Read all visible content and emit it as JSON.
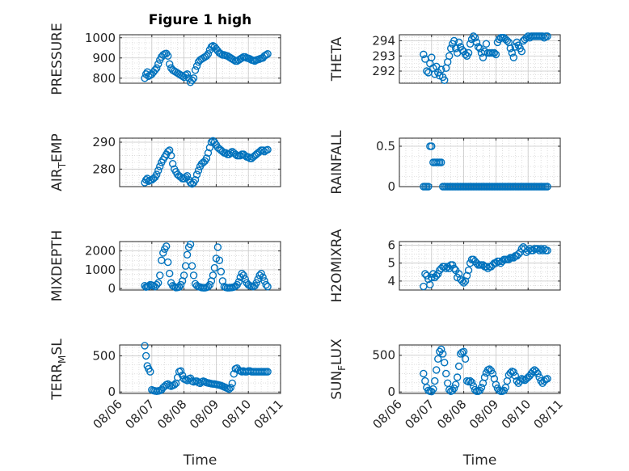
{
  "figure": {
    "title": "Figure 1 high"
  },
  "colors": {
    "marker": "#0072bd",
    "axis": "#262626",
    "grid": "#c8c8c8"
  },
  "chart_data": [
    {
      "type": "scatter",
      "ylabel": "PRESSURE",
      "xlabel": "",
      "ylim": [
        775,
        1015
      ],
      "yticks": [
        800,
        900,
        1000
      ],
      "xlim": [
        0,
        5
      ],
      "xticks": [],
      "x": [
        0.78,
        0.82,
        0.86,
        0.9,
        0.95,
        1.0,
        1.05,
        1.1,
        1.15,
        1.2,
        1.25,
        1.3,
        1.35,
        1.4,
        1.45,
        1.5,
        1.55,
        1.6,
        1.65,
        1.7,
        1.75,
        1.8,
        1.85,
        1.9,
        1.95,
        2.0,
        2.05,
        2.1,
        2.15,
        2.2,
        2.25,
        2.3,
        2.35,
        2.4,
        2.45,
        2.5,
        2.55,
        2.6,
        2.65,
        2.7,
        2.75,
        2.8,
        2.85,
        2.9,
        2.95,
        3.0,
        3.05,
        3.1,
        3.15,
        3.2,
        3.25,
        3.3,
        3.35,
        3.4,
        3.45,
        3.5,
        3.55,
        3.6,
        3.65,
        3.7,
        3.75,
        3.8,
        3.85,
        3.9,
        3.95,
        4.0,
        4.05,
        4.1,
        4.15,
        4.2,
        4.25,
        4.3,
        4.35,
        4.4,
        4.45,
        4.5,
        4.55,
        4.6
      ],
      "y": [
        800,
        820,
        830,
        810,
        815,
        820,
        830,
        840,
        850,
        870,
        890,
        905,
        915,
        920,
        922,
        910,
        870,
        850,
        840,
        835,
        830,
        825,
        820,
        815,
        810,
        805,
        815,
        820,
        800,
        780,
        790,
        800,
        840,
        860,
        880,
        890,
        895,
        900,
        905,
        910,
        920,
        940,
        955,
        960,
        955,
        945,
        935,
        925,
        920,
        915,
        915,
        912,
        910,
        905,
        900,
        895,
        890,
        885,
        885,
        890,
        895,
        900,
        905,
        905,
        900,
        898,
        895,
        890,
        888,
        885,
        890,
        892,
        895,
        898,
        900,
        910,
        915,
        920
      ]
    },
    {
      "type": "scatter",
      "ylabel": "THETA",
      "xlabel": "",
      "ylim": [
        291.2,
        294.4
      ],
      "yticks": [
        292,
        293,
        294
      ],
      "xlim": [
        0,
        5
      ],
      "xticks": [],
      "x": [
        0.75,
        0.8,
        0.85,
        0.9,
        0.95,
        1.0,
        1.05,
        1.1,
        1.15,
        1.2,
        1.25,
        1.3,
        1.35,
        1.4,
        1.45,
        1.5,
        1.55,
        1.6,
        1.65,
        1.7,
        1.75,
        1.8,
        1.85,
        1.9,
        1.95,
        2.0,
        2.05,
        2.1,
        2.15,
        2.2,
        2.25,
        2.3,
        2.35,
        2.4,
        2.45,
        2.5,
        2.55,
        2.6,
        2.65,
        2.7,
        2.75,
        2.8,
        2.85,
        2.9,
        2.95,
        3.0,
        3.05,
        3.1,
        3.15,
        3.2,
        3.25,
        3.3,
        3.35,
        3.4,
        3.45,
        3.5,
        3.55,
        3.6,
        3.65,
        3.7,
        3.75,
        3.8,
        3.85,
        3.9,
        3.95,
        4.0,
        4.05,
        4.1,
        4.15,
        4.2,
        4.25,
        4.3,
        4.35,
        4.4,
        4.45,
        4.5,
        4.55,
        4.6
      ],
      "y": [
        293.1,
        292.8,
        292.0,
        291.9,
        292.5,
        292.9,
        292.2,
        291.8,
        292.3,
        291.9,
        291.7,
        292.1,
        291.6,
        291.4,
        292.2,
        292.6,
        293.0,
        293.5,
        293.8,
        294.0,
        293.5,
        293.2,
        293.9,
        293.6,
        293.4,
        293.3,
        293.1,
        293.0,
        293.2,
        293.8,
        294.1,
        294.3,
        294.2,
        293.9,
        293.6,
        293.5,
        293.2,
        292.9,
        293.3,
        293.8,
        293.2,
        293.2,
        293.2,
        293.2,
        293.2,
        293.1,
        293.9,
        294.1,
        294.2,
        294.2,
        294.2,
        294.1,
        294.0,
        293.9,
        293.5,
        293.2,
        292.9,
        293.6,
        293.9,
        293.7,
        293.5,
        293.3,
        294.0,
        294.1,
        294.2,
        294.3,
        294.2,
        294.3,
        294.3,
        294.3,
        294.3,
        294.3,
        294.3,
        294.3,
        294.3,
        294.2,
        294.3,
        294.3
      ]
    },
    {
      "type": "scatter",
      "ylabel": "AIR_TEMP",
      "xlabel": "",
      "ylim": [
        273.5,
        291.5
      ],
      "yticks": [
        280,
        290
      ],
      "xlim": [
        0,
        5
      ],
      "xticks": [],
      "x": [
        0.78,
        0.82,
        0.86,
        0.9,
        0.95,
        1.0,
        1.05,
        1.1,
        1.15,
        1.2,
        1.25,
        1.3,
        1.35,
        1.4,
        1.45,
        1.5,
        1.55,
        1.6,
        1.65,
        1.7,
        1.75,
        1.8,
        1.85,
        1.9,
        1.95,
        2.0,
        2.05,
        2.1,
        2.15,
        2.2,
        2.25,
        2.3,
        2.35,
        2.4,
        2.45,
        2.5,
        2.55,
        2.6,
        2.65,
        2.7,
        2.75,
        2.8,
        2.85,
        2.9,
        2.95,
        3.0,
        3.05,
        3.1,
        3.15,
        3.2,
        3.25,
        3.3,
        3.35,
        3.4,
        3.45,
        3.5,
        3.55,
        3.6,
        3.65,
        3.7,
        3.75,
        3.8,
        3.85,
        3.9,
        3.95,
        4.0,
        4.05,
        4.1,
        4.15,
        4.2,
        4.25,
        4.3,
        4.35,
        4.4,
        4.45,
        4.5,
        4.55,
        4.6
      ],
      "y": [
        275,
        276,
        276.5,
        275.5,
        275.8,
        276,
        276.5,
        277,
        278,
        279.5,
        281,
        282.5,
        283.5,
        284.5,
        285.5,
        286.5,
        287,
        285,
        282,
        280,
        279,
        278,
        277.5,
        277,
        276.5,
        276.5,
        277,
        277.5,
        276,
        275,
        274.5,
        275,
        276,
        278,
        279.5,
        281,
        282,
        282.5,
        283,
        284,
        286,
        288,
        290,
        290.5,
        290,
        289,
        288,
        287.5,
        287,
        286.5,
        286,
        286,
        285.5,
        285.5,
        286,
        286.5,
        286,
        285.5,
        285,
        285,
        285,
        285.5,
        285.5,
        285,
        284.5,
        284.5,
        284,
        284,
        284.5,
        285,
        285.5,
        286,
        286.5,
        287,
        287,
        286.5,
        287,
        287.2
      ]
    },
    {
      "type": "scatter",
      "ylabel": "RAINFALL",
      "xlabel": "",
      "ylim": [
        0,
        0.6
      ],
      "yticks": [
        0,
        0.5
      ],
      "xlim": [
        0,
        5
      ],
      "xticks": [],
      "x": [
        0.75,
        0.8,
        0.85,
        0.9,
        0.95,
        1.0,
        1.05,
        1.1,
        1.15,
        1.2,
        1.25,
        1.3,
        1.35,
        1.4,
        1.45,
        1.5,
        1.55,
        1.6,
        1.65,
        1.7,
        1.75,
        1.8,
        1.85,
        1.9,
        1.95,
        2.0,
        2.05,
        2.1,
        2.15,
        2.2,
        2.25,
        2.3,
        2.35,
        2.4,
        2.45,
        2.5,
        2.55,
        2.6,
        2.65,
        2.7,
        2.75,
        2.8,
        2.85,
        2.9,
        2.95,
        3.0,
        3.05,
        3.1,
        3.15,
        3.2,
        3.25,
        3.3,
        3.35,
        3.4,
        3.45,
        3.5,
        3.55,
        3.6,
        3.65,
        3.7,
        3.75,
        3.8,
        3.85,
        3.9,
        3.95,
        4.0,
        4.05,
        4.1,
        4.15,
        4.2,
        4.25,
        4.3,
        4.35,
        4.4,
        4.45,
        4.5,
        4.55,
        4.6
      ],
      "y": [
        0,
        0,
        0,
        0,
        0.5,
        0.5,
        0.3,
        0.3,
        0.3,
        0.3,
        0.3,
        0.3,
        0,
        0,
        0,
        0,
        0,
        0,
        0,
        0,
        0,
        0,
        0,
        0,
        0,
        0,
        0,
        0,
        0,
        0,
        0,
        0,
        0,
        0,
        0,
        0,
        0,
        0,
        0,
        0,
        0,
        0,
        0,
        0,
        0,
        0,
        0,
        0,
        0,
        0,
        0,
        0,
        0,
        0,
        0,
        0,
        0,
        0,
        0,
        0,
        0,
        0,
        0,
        0,
        0,
        0,
        0,
        0,
        0,
        0,
        0,
        0,
        0,
        0,
        0,
        0,
        0,
        0
      ]
    },
    {
      "type": "scatter",
      "ylabel": "MIXDEPTH",
      "xlabel": "",
      "ylim": [
        -80,
        2500
      ],
      "yticks": [
        0,
        1000,
        2000
      ],
      "xlim": [
        0,
        5
      ],
      "xticks": [],
      "x": [
        0.78,
        0.82,
        0.86,
        0.9,
        0.95,
        1.0,
        1.05,
        1.1,
        1.15,
        1.2,
        1.25,
        1.3,
        1.35,
        1.4,
        1.45,
        1.5,
        1.55,
        1.6,
        1.65,
        1.7,
        1.75,
        1.8,
        1.85,
        1.9,
        1.95,
        2.0,
        2.05,
        2.1,
        2.15,
        2.2,
        2.25,
        2.3,
        2.35,
        2.4,
        2.45,
        2.5,
        2.55,
        2.6,
        2.65,
        2.7,
        2.75,
        2.8,
        2.85,
        2.9,
        2.95,
        3.0,
        3.05,
        3.1,
        3.15,
        3.2,
        3.25,
        3.3,
        3.35,
        3.4,
        3.45,
        3.5,
        3.55,
        3.6,
        3.65,
        3.7,
        3.75,
        3.8,
        3.85,
        3.9,
        3.95,
        4.0,
        4.05,
        4.1,
        4.15,
        4.2,
        4.25,
        4.3,
        4.35,
        4.4,
        4.45,
        4.5,
        4.55,
        4.6
      ],
      "y": [
        150,
        80,
        100,
        120,
        200,
        180,
        150,
        100,
        200,
        300,
        700,
        1500,
        1900,
        2100,
        2250,
        1400,
        800,
        300,
        150,
        100,
        50,
        60,
        80,
        200,
        400,
        700,
        1200,
        1800,
        2200,
        2350,
        1200,
        700,
        250,
        150,
        100,
        80,
        50,
        40,
        40,
        60,
        100,
        200,
        400,
        700,
        1100,
        1600,
        2200,
        1500,
        900,
        400,
        100,
        60,
        40,
        40,
        50,
        60,
        80,
        120,
        200,
        350,
        600,
        800,
        700,
        500,
        300,
        200,
        150,
        120,
        100,
        150,
        300,
        500,
        700,
        800,
        600,
        400,
        200,
        100
      ]
    },
    {
      "type": "scatter",
      "ylabel": "H2OMIXRA",
      "xlabel": "",
      "ylim": [
        3.5,
        6.2
      ],
      "yticks": [
        4,
        5,
        6
      ],
      "xlim": [
        0,
        5
      ],
      "xticks": [],
      "x": [
        0.75,
        0.8,
        0.85,
        0.9,
        0.95,
        1.0,
        1.05,
        1.1,
        1.15,
        1.2,
        1.25,
        1.3,
        1.35,
        1.4,
        1.45,
        1.5,
        1.55,
        1.6,
        1.65,
        1.7,
        1.75,
        1.8,
        1.85,
        1.9,
        1.95,
        2.0,
        2.05,
        2.1,
        2.15,
        2.2,
        2.25,
        2.3,
        2.35,
        2.4,
        2.45,
        2.5,
        2.55,
        2.6,
        2.65,
        2.7,
        2.75,
        2.8,
        2.85,
        2.9,
        2.95,
        3.0,
        3.05,
        3.1,
        3.15,
        3.2,
        3.25,
        3.3,
        3.35,
        3.4,
        3.45,
        3.5,
        3.55,
        3.6,
        3.65,
        3.7,
        3.75,
        3.8,
        3.85,
        3.9,
        3.95,
        4.0,
        4.05,
        4.1,
        4.15,
        4.2,
        4.25,
        4.3,
        4.35,
        4.4,
        4.45,
        4.5,
        4.55,
        4.6
      ],
      "y": [
        3.7,
        4.4,
        4.3,
        4.1,
        3.8,
        4.2,
        4.4,
        4.2,
        4.3,
        4.4,
        4.6,
        4.7,
        4.8,
        4.8,
        4.7,
        4.8,
        4.7,
        4.9,
        4.9,
        4.7,
        4.6,
        4.2,
        4.4,
        4.1,
        4.0,
        3.9,
        4.0,
        4.3,
        4.6,
        5.0,
        5.2,
        5.2,
        5.1,
        5.0,
        4.9,
        4.9,
        4.9,
        4.9,
        4.8,
        4.8,
        4.7,
        4.8,
        4.8,
        4.9,
        5.0,
        5.0,
        5.1,
        5.1,
        5.0,
        5.1,
        5.2,
        5.2,
        5.2,
        5.2,
        5.3,
        5.3,
        5.3,
        5.4,
        5.4,
        5.5,
        5.6,
        5.8,
        5.9,
        5.8,
        5.6,
        5.7,
        5.8,
        5.7,
        5.7,
        5.8,
        5.8,
        5.8,
        5.7,
        5.8,
        5.7,
        5.8,
        5.7,
        5.7
      ]
    },
    {
      "type": "scatter",
      "ylabel": "TERR_MSL",
      "xlabel": "Time",
      "ylim": [
        -20,
        650
      ],
      "yticks": [
        0,
        500
      ],
      "xlim": [
        0,
        5
      ],
      "xticks": [
        "08/06",
        "08/07",
        "08/08",
        "08/09",
        "08/10",
        "08/11"
      ],
      "x": [
        0.78,
        0.82,
        0.86,
        0.9,
        0.95,
        1.0,
        1.05,
        1.1,
        1.15,
        1.2,
        1.25,
        1.3,
        1.35,
        1.4,
        1.45,
        1.5,
        1.55,
        1.6,
        1.65,
        1.7,
        1.75,
        1.8,
        1.85,
        1.9,
        1.95,
        2.0,
        2.05,
        2.1,
        2.15,
        2.2,
        2.25,
        2.3,
        2.35,
        2.4,
        2.45,
        2.5,
        2.55,
        2.6,
        2.65,
        2.7,
        2.75,
        2.8,
        2.85,
        2.9,
        2.95,
        3.0,
        3.05,
        3.1,
        3.15,
        3.2,
        3.25,
        3.3,
        3.35,
        3.4,
        3.45,
        3.5,
        3.55,
        3.6,
        3.65,
        3.7,
        3.75,
        3.8,
        3.85,
        3.9,
        3.95,
        4.0,
        4.05,
        4.1,
        4.15,
        4.2,
        4.25,
        4.3,
        4.35,
        4.4,
        4.45,
        4.5,
        4.55,
        4.6
      ],
      "y": [
        640,
        500,
        360,
        320,
        280,
        30,
        20,
        15,
        10,
        15,
        20,
        30,
        60,
        80,
        100,
        110,
        90,
        80,
        90,
        100,
        120,
        200,
        280,
        290,
        230,
        180,
        170,
        160,
        180,
        190,
        150,
        140,
        150,
        150,
        130,
        120,
        140,
        150,
        140,
        130,
        125,
        120,
        115,
        110,
        110,
        105,
        100,
        95,
        90,
        80,
        70,
        60,
        50,
        40,
        60,
        120,
        250,
        320,
        330,
        300,
        290,
        280,
        290,
        280,
        280,
        290,
        290,
        280,
        280,
        280,
        280,
        280,
        280,
        280,
        280,
        280,
        280,
        280
      ]
    },
    {
      "type": "scatter",
      "ylabel": "SUN_FLUX",
      "xlabel": "Time",
      "ylim": [
        -20,
        640
      ],
      "yticks": [
        0,
        500
      ],
      "xlim": [
        0,
        5
      ],
      "xticks": [
        "08/06",
        "08/07",
        "08/08",
        "08/09",
        "08/10",
        "08/11"
      ],
      "x": [
        0.75,
        0.8,
        0.85,
        0.9,
        0.95,
        1.0,
        1.05,
        1.1,
        1.15,
        1.2,
        1.25,
        1.3,
        1.35,
        1.4,
        1.45,
        1.5,
        1.55,
        1.6,
        1.65,
        1.7,
        1.75,
        1.8,
        1.85,
        1.9,
        1.95,
        2.0,
        2.05,
        2.1,
        2.15,
        2.2,
        2.25,
        2.3,
        2.35,
        2.4,
        2.45,
        2.5,
        2.55,
        2.6,
        2.65,
        2.7,
        2.75,
        2.8,
        2.85,
        2.9,
        2.95,
        3.0,
        3.05,
        3.1,
        3.15,
        3.2,
        3.25,
        3.3,
        3.35,
        3.4,
        3.45,
        3.5,
        3.55,
        3.6,
        3.65,
        3.7,
        3.75,
        3.8,
        3.85,
        3.9,
        3.95,
        4.0,
        4.05,
        4.1,
        4.15,
        4.2,
        4.25,
        4.3,
        4.35,
        4.4,
        4.45,
        4.5,
        4.55,
        4.6
      ],
      "y": [
        250,
        150,
        60,
        20,
        10,
        5,
        40,
        150,
        300,
        450,
        550,
        580,
        520,
        400,
        250,
        120,
        30,
        10,
        20,
        50,
        100,
        200,
        350,
        520,
        540,
        550,
        450,
        150,
        140,
        150,
        130,
        80,
        30,
        10,
        10,
        20,
        60,
        120,
        200,
        260,
        300,
        310,
        290,
        250,
        180,
        100,
        50,
        20,
        10,
        10,
        20,
        60,
        150,
        230,
        260,
        280,
        270,
        220,
        150,
        120,
        150,
        180,
        170,
        160,
        180,
        200,
        220,
        250,
        280,
        300,
        280,
        250,
        200,
        150,
        120,
        150,
        170,
        180
      ]
    }
  ]
}
